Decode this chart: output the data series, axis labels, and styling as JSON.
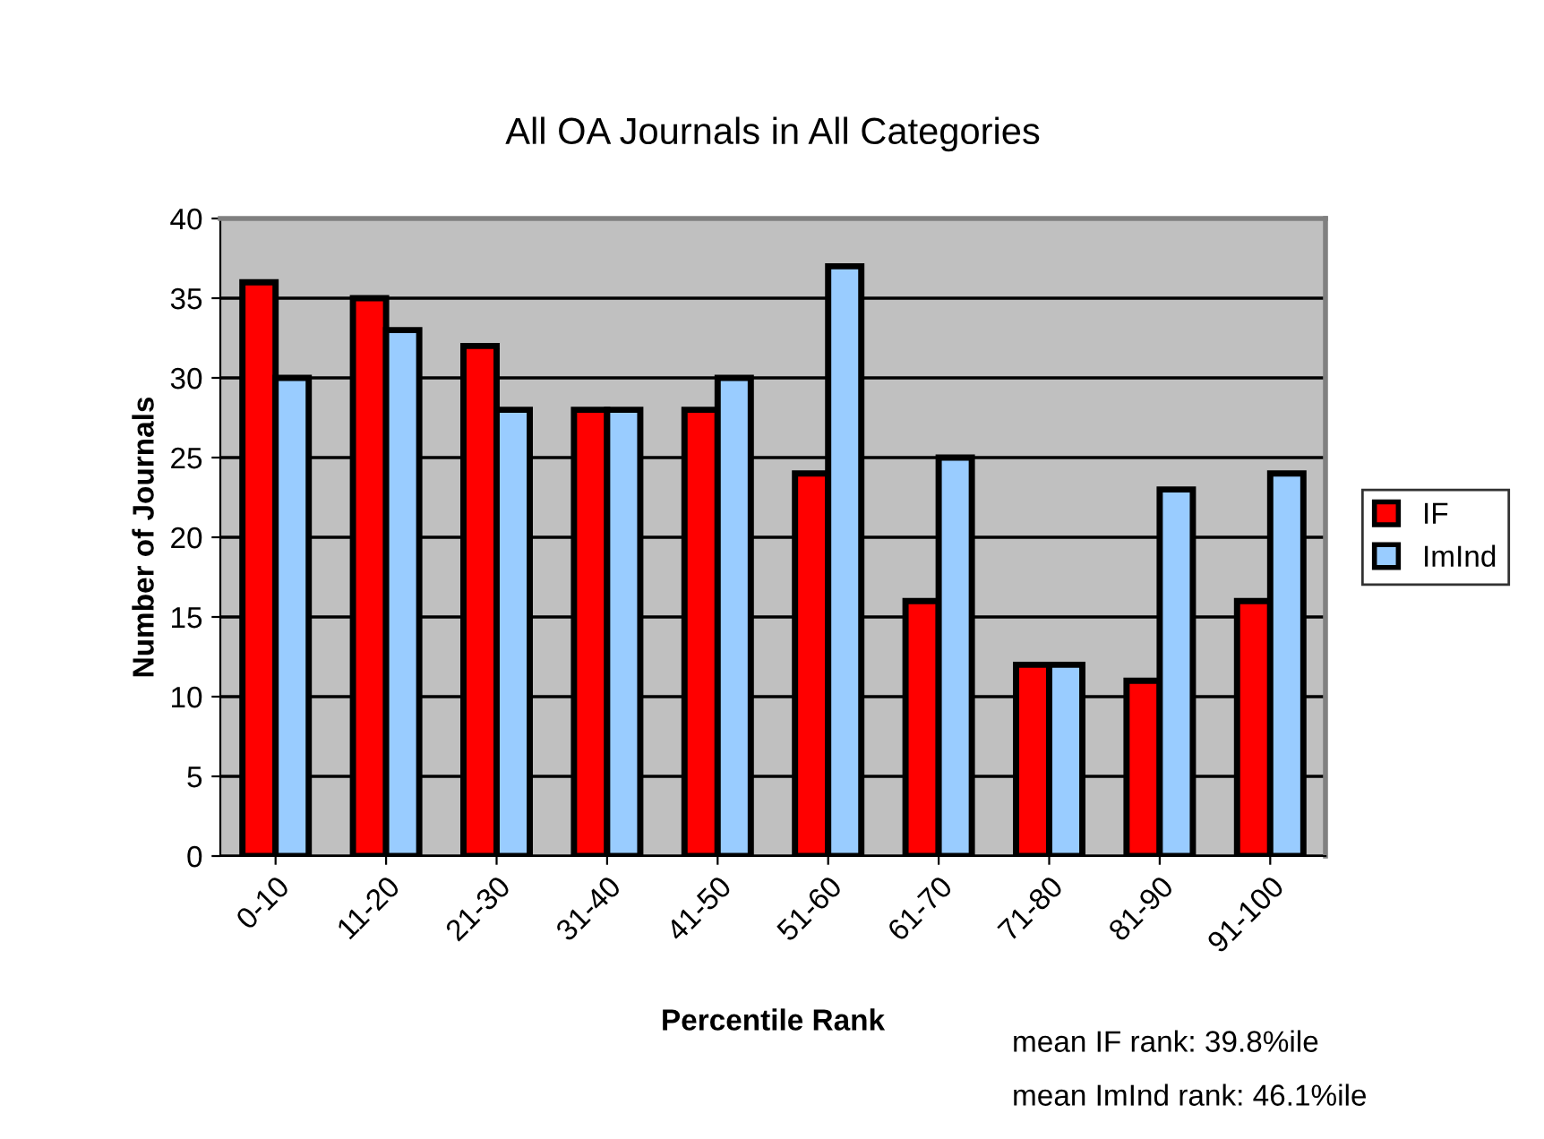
{
  "chart_data": {
    "type": "bar",
    "title": "All OA Journals in All Categories",
    "xlabel": "Percentile Rank",
    "ylabel": "Number of Journals",
    "categories": [
      "0-10",
      "11-20",
      "21-30",
      "31-40",
      "41-50",
      "51-60",
      "61-70",
      "71-80",
      "81-90",
      "91-100"
    ],
    "series": [
      {
        "name": "IF",
        "color": "#ff0000",
        "values": [
          36,
          35,
          32,
          28,
          28,
          24,
          16,
          12,
          11,
          16
        ]
      },
      {
        "name": "ImInd",
        "color": "#99ccff",
        "values": [
          30,
          33,
          28,
          28,
          30,
          37,
          25,
          12,
          23,
          24
        ]
      }
    ],
    "ylim": [
      0,
      40
    ],
    "yticks": [
      0,
      5,
      10,
      15,
      20,
      25,
      30,
      35,
      40
    ],
    "grid": "y",
    "legend": "right",
    "annotations": [
      "mean IF rank: 39.8%ile",
      "mean ImInd rank: 46.1%ile"
    ]
  }
}
